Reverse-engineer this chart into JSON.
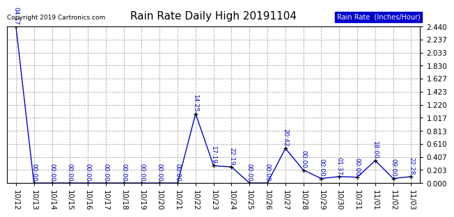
{
  "title": "Rain Rate Daily High 20191104",
  "copyright": "Copyright 2019 Cartronics.com",
  "legend_label": "Rain Rate  (Inches/Hour)",
  "x_labels": [
    "10/12",
    "10/13",
    "10/14",
    "10/15",
    "10/16",
    "10/17",
    "10/18",
    "10/19",
    "10/20",
    "10/21",
    "10/22",
    "10/23",
    "10/24",
    "10/25",
    "10/26",
    "10/27",
    "10/28",
    "10/29",
    "10/30",
    "10/31",
    "11/01",
    "11/02",
    "11/03"
  ],
  "x_values": [
    0,
    1,
    2,
    3,
    4,
    5,
    6,
    7,
    8,
    9,
    10,
    11,
    12,
    13,
    14,
    15,
    16,
    17,
    18,
    19,
    20,
    21,
    22
  ],
  "y_values": [
    2.44,
    0.0,
    0.0,
    0.0,
    0.0,
    0.0,
    0.0,
    0.0,
    0.0,
    0.0,
    1.08,
    0.27,
    0.25,
    0.0,
    0.0,
    0.54,
    0.2,
    0.07,
    0.1,
    0.09,
    0.35,
    0.07,
    0.1
  ],
  "point_labels": [
    "04:17",
    "00:00",
    "00:00",
    "00:00",
    "00:00",
    "00:00",
    "00:00",
    "00:00",
    "00:00",
    "00:00",
    "14:25",
    "17:19",
    "22:19",
    "00:00",
    "00:00",
    "20:42",
    "00:00",
    "00:00",
    "01:37",
    "00:00",
    "18:00",
    "09:00",
    "22:28"
  ],
  "ylim": [
    0.0,
    2.44
  ],
  "yticks": [
    0.0,
    0.203,
    0.407,
    0.61,
    0.813,
    1.017,
    1.22,
    1.423,
    1.627,
    1.83,
    2.033,
    2.237,
    2.44
  ],
  "line_color": "#0000cc",
  "marker_color": "#000000",
  "legend_bg": "#0000cc",
  "legend_text_color": "#ffffff",
  "background_color": "#ffffff",
  "grid_color": "#aaaaaa",
  "title_fontsize": 11,
  "label_fontsize": 6.5,
  "tick_fontsize": 7.5,
  "copyright_fontsize": 6.5
}
